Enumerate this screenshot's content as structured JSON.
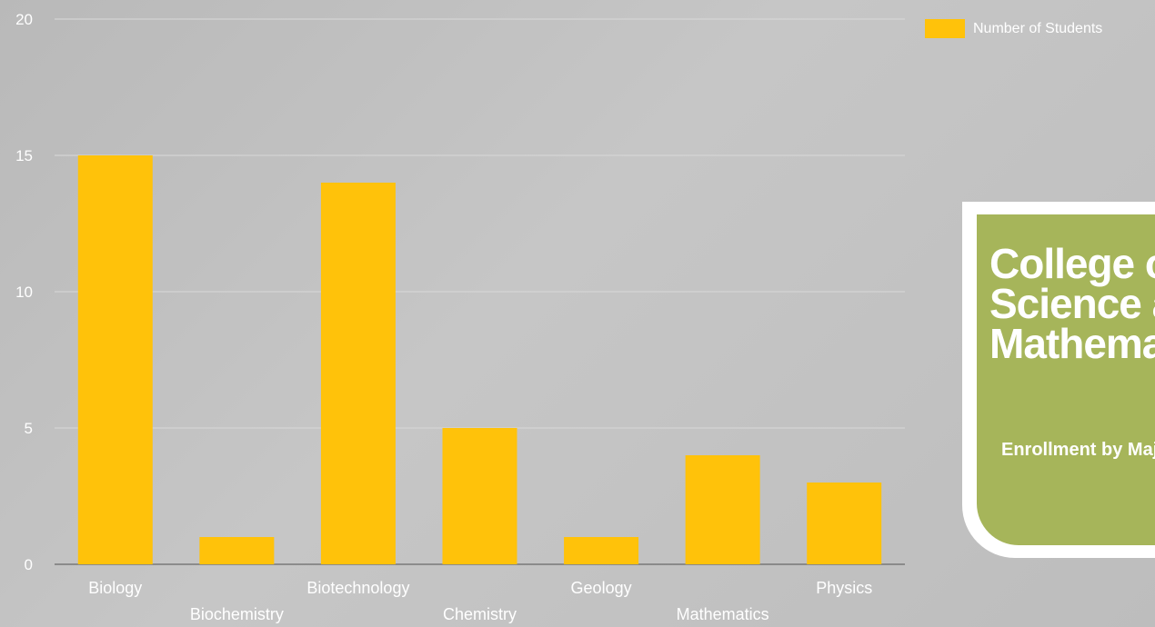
{
  "chart_data": {
    "type": "bar",
    "categories": [
      "Biology",
      "Biochemistry",
      "Biotechnology",
      "Chemistry",
      "Geology",
      "Mathematics",
      "Physics"
    ],
    "series": [
      {
        "name": "Number of Students",
        "values": [
          15,
          1,
          14,
          5,
          1,
          4,
          3
        ]
      }
    ],
    "yticks": [
      "0",
      "5",
      "10",
      "15",
      "20"
    ],
    "ylim": [
      0,
      20
    ],
    "grid": true,
    "legend_position": "top-right",
    "bar_color": "#ffc20a"
  },
  "legend": {
    "label": "Number of Students",
    "color": "#ffc20a"
  },
  "card": {
    "title_lines": [
      "College of",
      "Science and",
      "Mathematics"
    ],
    "subtitle": "Enrollment by Major",
    "color": "#a6b55a"
  }
}
